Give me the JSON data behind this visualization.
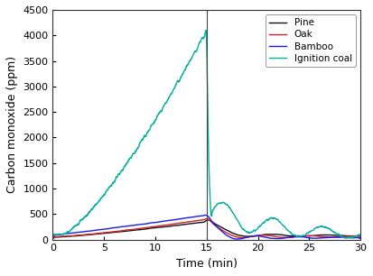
{
  "title": "",
  "xlabel": "Time (min)",
  "ylabel": "Carbon monoxide (ppm)",
  "xlim": [
    0,
    30
  ],
  "ylim": [
    0,
    4500
  ],
  "yticks": [
    0,
    500,
    1000,
    1500,
    2000,
    2500,
    3000,
    3500,
    4000,
    4500
  ],
  "xticks": [
    0,
    5,
    10,
    15,
    20,
    25,
    30
  ],
  "vline_x": 15,
  "legend": [
    "Pine",
    "Oak",
    "Bamboo",
    "Ignition coal"
  ],
  "line_colors": [
    "#111111",
    "#d42020",
    "#1a1aee",
    "#00b0a0"
  ],
  "background_color": "#ffffff",
  "line_width": 1.0
}
